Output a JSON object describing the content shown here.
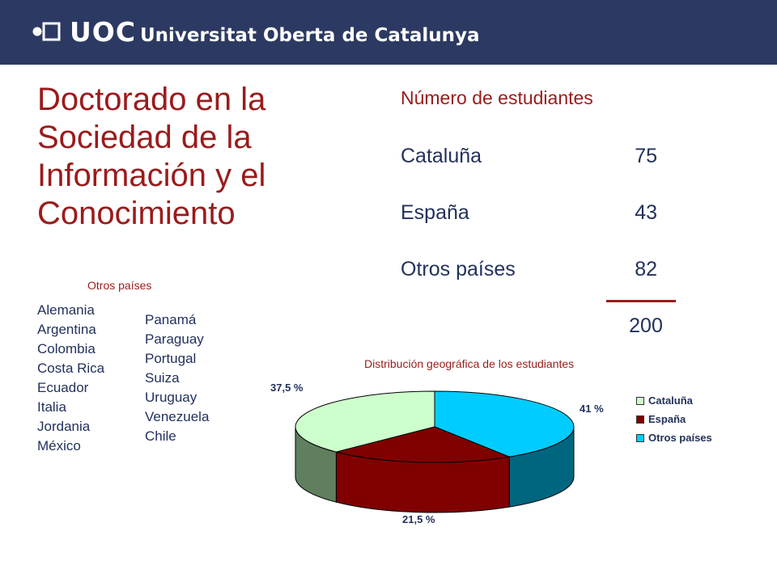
{
  "header": {
    "logo_text": "UOC",
    "institution": "Universitat Oberta de Catalunya"
  },
  "title_lines": [
    "Doctorado en la",
    "Sociedad de la",
    "Información y el",
    "Conocimiento"
  ],
  "stats": {
    "heading": "Número de estudiantes",
    "rows": [
      {
        "label": "Cataluña",
        "value": "75"
      },
      {
        "label": "España",
        "value": "43"
      },
      {
        "label": "Otros países",
        "value": "82"
      }
    ],
    "total": "200"
  },
  "other_countries": {
    "heading": "Otros países",
    "column1": [
      "Alemania",
      "Argentina",
      "Colombia",
      "Costa Rica",
      "Ecuador",
      "Italia",
      "Jordania",
      "México"
    ],
    "column2": [
      "Panamá",
      "Paraguay",
      "Portugal",
      "Suiza",
      "Uruguay",
      "Venezuela",
      "Chile"
    ]
  },
  "colors": {
    "header_bg": "#2c3a63",
    "title": "#9b1b1b",
    "text": "#22315c"
  },
  "chart_data": {
    "type": "pie",
    "title": "Distribución geográfica de los estudiantes",
    "categories": [
      "Cataluña",
      "España",
      "Otros países"
    ],
    "values": [
      37.5,
      21.5,
      41
    ],
    "value_labels": [
      "37,5  %",
      "21,5  %",
      "41  %"
    ],
    "legend_position": "right",
    "three_d": true,
    "colors": [
      {
        "top": "#ccffcc",
        "side": "#5f7f5f"
      },
      {
        "top": "#800000",
        "side": "#800000"
      },
      {
        "top": "#00ccff",
        "side": "#006680"
      }
    ]
  }
}
